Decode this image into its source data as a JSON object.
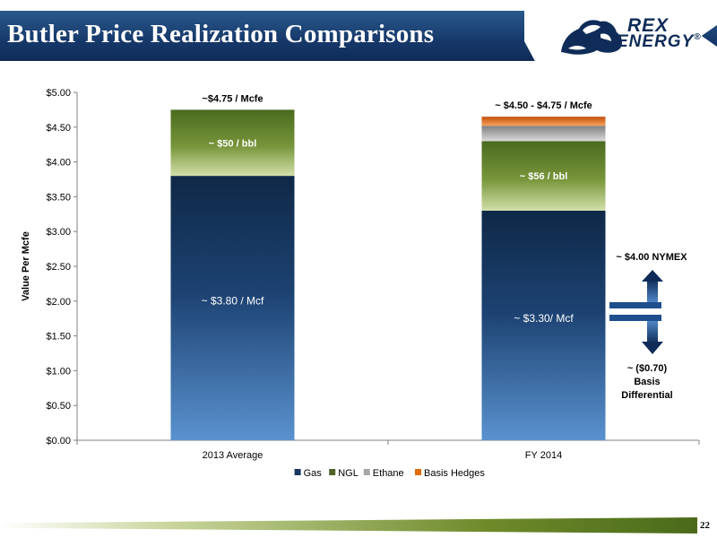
{
  "header": {
    "title": "Butler Price Realization Comparisons"
  },
  "logo": {
    "line1": "REX",
    "line2": "ENERGY",
    "mark": "®"
  },
  "page_number": "22",
  "chart_data": {
    "type": "bar",
    "stacked": true,
    "categories": [
      "2013 Average",
      "FY 2014"
    ],
    "series": [
      {
        "name": "Gas",
        "values": [
          3.8,
          3.3
        ],
        "color": "#17375e"
      },
      {
        "name": "NGL",
        "values": [
          0.95,
          1.0
        ],
        "color": "#4f6228"
      },
      {
        "name": "Ethane",
        "values": [
          0.0,
          0.22
        ],
        "color": "#a6a6a6"
      },
      {
        "name": "Basis Hedges",
        "values": [
          0.0,
          0.13
        ],
        "color": "#e36c0a"
      }
    ],
    "ylabel": "Value Per Mcfe",
    "ylim": [
      0,
      5
    ],
    "yticks": [
      "$0.00",
      "$0.50",
      "$1.00",
      "$1.50",
      "$2.00",
      "$2.50",
      "$3.00",
      "$3.50",
      "$4.00",
      "$4.50",
      "$5.00"
    ],
    "legend_position": "bottom",
    "total_labels": [
      "~$4.75 / Mcfe",
      "~ $4.50 - $4.75 / Mcfe"
    ],
    "segment_labels": {
      "gas": [
        "~ $3.80 / Mcf",
        "~ $3.30/ Mcf"
      ],
      "ngl": [
        "~ $50 / bbl",
        "~ $56 / bbl"
      ]
    },
    "annotations": {
      "nymex": "~ $4.00 NYMEX",
      "basis_line1": "~ ($0.70)",
      "basis_line2": "Basis",
      "basis_line3": "Differential"
    }
  }
}
